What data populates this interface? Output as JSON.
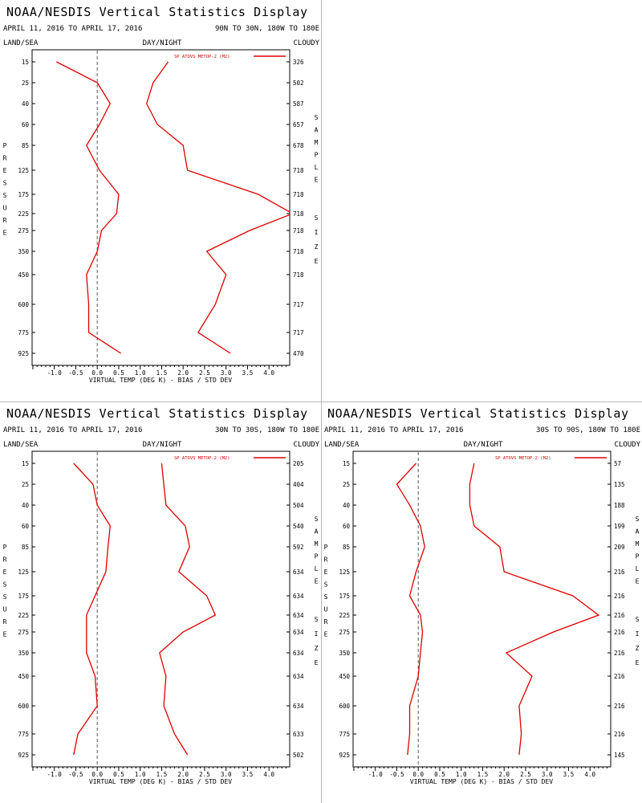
{
  "panels": [
    {
      "title": "NOAA/NESDIS Vertical Statistics Display",
      "date_range": "APRIL 11, 2016 TO APRIL 17, 2016",
      "region": "90N TO 30N, 180W TO 180E",
      "left_label": "LAND/SEA",
      "center_label": "DAY/NIGHT",
      "right_label": "CLOUDY",
      "side_label_left": "PRESSURE",
      "side_label_right": "SAMPLE SIZE",
      "xlabel": "VIRTUAL TEMP (DEG K) - BIAS / STD DEV",
      "legend": "SP ATOVS METOP-2 (M2)"
    },
    {
      "title": "NOAA/NESDIS Vertical Statistics Display",
      "date_range": "APRIL 11, 2016 TO APRIL 17, 2016",
      "region": "30N TO 30S, 180W TO 180E",
      "left_label": "LAND/SEA",
      "center_label": "DAY/NIGHT",
      "right_label": "CLOUDY",
      "side_label_left": "PRESSURE",
      "side_label_right": "SAMPLE SIZE",
      "xlabel": "VIRTUAL TEMP (DEG K) - BIAS / STD DEV",
      "legend": "SP ATOVS METOP-2 (M2)"
    },
    {
      "title": "NOAA/NESDIS Vertical Statistics Display",
      "date_range": "APRIL 11, 2016 TO APRIL 17, 2016",
      "region": "30S TO 90S, 180W TO 180E",
      "left_label": "LAND/SEA",
      "center_label": "DAY/NIGHT",
      "right_label": "CLOUDY",
      "side_label_left": "PRESSURE",
      "side_label_right": "SAMPLE SIZE",
      "xlabel": "VIRTUAL TEMP (DEG K) - BIAS / STD DEV",
      "legend": "SP ATOVS METOP-2 (M2)"
    }
  ],
  "chart_data": [
    {
      "type": "line",
      "title": "NOAA/NESDIS Vertical Statistics Display",
      "xlabel": "VIRTUAL TEMP (DEG K) - BIAS / STD DEV",
      "ylabel": "PRESSURE",
      "xlim": [
        -1.5,
        4.5
      ],
      "xticks": [
        "-1.0",
        "-0.5",
        "0.0",
        "0.5",
        "1.0",
        "1.5",
        "2.0",
        "2.5",
        "3.0",
        "3.5",
        "4.0"
      ],
      "pressure_levels": [
        "15",
        "25",
        "40",
        "60",
        "85",
        "125",
        "175",
        "225",
        "275",
        "350",
        "450",
        "600",
        "775",
        "925"
      ],
      "sample_size": [
        "326",
        "502",
        "587",
        "657",
        "678",
        "718",
        "718",
        "718",
        "718",
        "718",
        "718",
        "717",
        "717",
        "470"
      ],
      "line_color": "#dd0000",
      "series": [
        {
          "name": "BIAS",
          "values": [
            -0.95,
            0.0,
            0.3,
            0.05,
            -0.25,
            0.05,
            0.5,
            0.45,
            0.1,
            0.0,
            -0.25,
            -0.2,
            -0.2,
            0.55
          ]
        },
        {
          "name": "STD DEV",
          "values": [
            1.65,
            1.3,
            1.15,
            1.4,
            2.0,
            2.1,
            3.75,
            4.55,
            3.55,
            2.55,
            3.0,
            2.75,
            2.35,
            3.1
          ]
        }
      ]
    },
    {
      "type": "line",
      "title": "NOAA/NESDIS Vertical Statistics Display",
      "xlabel": "VIRTUAL TEMP (DEG K) - BIAS / STD DEV",
      "ylabel": "PRESSURE",
      "xlim": [
        -1.5,
        4.5
      ],
      "xticks": [
        "-1.0",
        "-0.5",
        "0.0",
        "0.5",
        "1.0",
        "1.5",
        "2.0",
        "2.5",
        "3.0",
        "3.5",
        "4.0"
      ],
      "pressure_levels": [
        "15",
        "25",
        "40",
        "60",
        "85",
        "125",
        "175",
        "225",
        "275",
        "350",
        "450",
        "600",
        "775",
        "925"
      ],
      "sample_size": [
        "205",
        "404",
        "504",
        "540",
        "592",
        "634",
        "634",
        "634",
        "634",
        "634",
        "634",
        "634",
        "633",
        "502"
      ],
      "line_color": "#dd0000",
      "series": [
        {
          "name": "BIAS",
          "values": [
            -0.55,
            -0.1,
            0.0,
            0.3,
            0.25,
            0.2,
            -0.05,
            -0.25,
            -0.25,
            -0.25,
            -0.05,
            0.0,
            -0.45,
            -0.55
          ]
        },
        {
          "name": "STD DEV",
          "values": [
            1.5,
            1.55,
            1.6,
            2.05,
            2.15,
            1.9,
            2.55,
            2.75,
            2.0,
            1.45,
            1.6,
            1.55,
            1.8,
            2.1
          ]
        }
      ]
    },
    {
      "type": "line",
      "title": "NOAA/NESDIS Vertical Statistics Display",
      "xlabel": "VIRTUAL TEMP (DEG K) - BIAS / STD DEV",
      "ylabel": "PRESSURE",
      "xlim": [
        -1.5,
        4.5
      ],
      "xticks": [
        "-1.0",
        "-0.5",
        "0.0",
        "0.5",
        "1.0",
        "1.5",
        "2.0",
        "2.5",
        "3.0",
        "3.5",
        "4.0"
      ],
      "pressure_levels": [
        "15",
        "25",
        "40",
        "60",
        "85",
        "125",
        "175",
        "225",
        "275",
        "350",
        "450",
        "600",
        "775",
        "925"
      ],
      "sample_size": [
        "57",
        "135",
        "188",
        "199",
        "209",
        "216",
        "216",
        "216",
        "216",
        "216",
        "216",
        "216",
        "216",
        "145"
      ],
      "line_color": "#dd0000",
      "series": [
        {
          "name": "BIAS",
          "values": [
            -0.05,
            -0.5,
            -0.2,
            0.05,
            0.15,
            -0.05,
            -0.2,
            0.05,
            0.1,
            0.05,
            0.0,
            -0.2,
            -0.2,
            -0.25
          ]
        },
        {
          "name": "STD DEV",
          "values": [
            1.3,
            1.2,
            1.2,
            1.3,
            1.9,
            2.0,
            3.6,
            4.2,
            3.15,
            2.05,
            2.65,
            2.35,
            2.4,
            2.35
          ]
        }
      ]
    }
  ]
}
